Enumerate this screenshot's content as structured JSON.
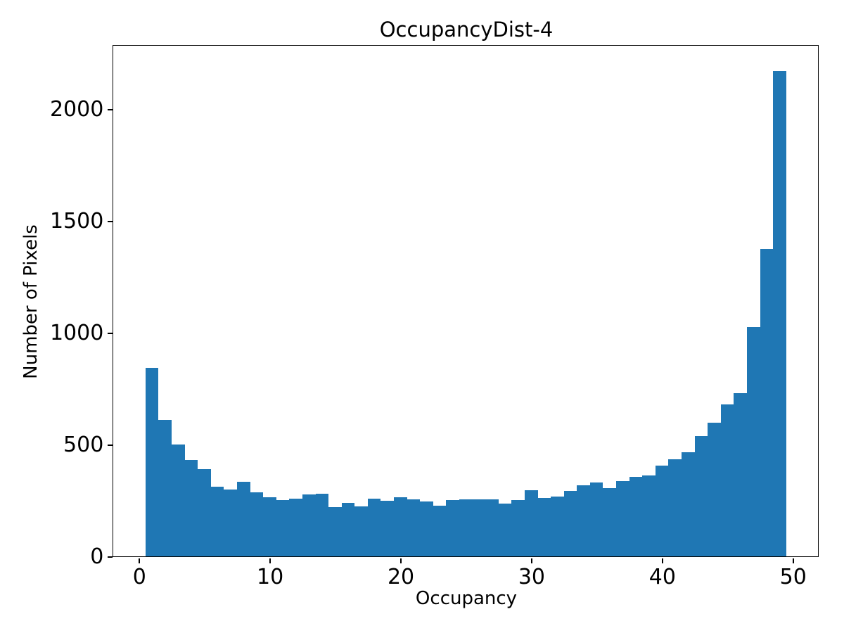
{
  "figure": {
    "title": "OccupancyDist-4",
    "xlabel": "Occupancy",
    "ylabel": "Number of Pixels"
  },
  "chart_data": {
    "type": "histogram",
    "title": "OccupancyDist-4",
    "xlabel": "Occupancy",
    "ylabel": "Number of Pixels",
    "bar_color": "#1f77b4",
    "axis_color": "#000000",
    "background_color": "#ffffff",
    "grid": false,
    "legend_position": "none",
    "bin_start": 0.5,
    "bin_width": 1,
    "bin_centers": [
      1,
      2,
      3,
      4,
      5,
      6,
      7,
      8,
      9,
      10,
      11,
      12,
      13,
      14,
      15,
      16,
      17,
      18,
      19,
      20,
      21,
      22,
      23,
      24,
      25,
      26,
      27,
      28,
      29,
      30,
      31,
      32,
      33,
      34,
      35,
      36,
      37,
      38,
      39,
      40,
      41,
      42,
      43,
      44,
      45,
      46,
      47,
      48,
      49
    ],
    "values": [
      845,
      610,
      500,
      433,
      390,
      312,
      299,
      335,
      287,
      264,
      251,
      259,
      278,
      280,
      222,
      240,
      223,
      258,
      248,
      264,
      255,
      246,
      228,
      252,
      257,
      255,
      257,
      238,
      253,
      297,
      262,
      267,
      292,
      318,
      332,
      306,
      337,
      355,
      362,
      408,
      435,
      467,
      539,
      600,
      679,
      729,
      1025,
      1375,
      2170
    ],
    "x_ticks": [
      0,
      10,
      20,
      30,
      40,
      50
    ],
    "y_ticks": [
      0,
      500,
      1000,
      1500,
      2000
    ],
    "xlim": [
      -1.95,
      51.95
    ],
    "ylim": [
      0,
      2283
    ]
  }
}
